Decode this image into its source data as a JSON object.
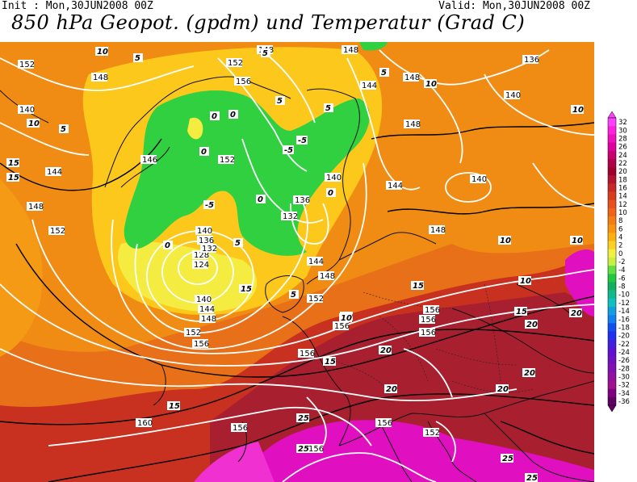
{
  "header": {
    "init": "Init : Mon,30JUN2008 00Z",
    "valid": "Valid: Mon,30JUN2008 00Z",
    "title": "850 hPa Geopot. (gpdm) und Temperatur (Grad C)"
  },
  "legend": {
    "values": [
      "32",
      "30",
      "28",
      "26",
      "24",
      "22",
      "20",
      "18",
      "16",
      "14",
      "12",
      "10",
      "8",
      "6",
      "4",
      "2",
      "0",
      "-2",
      "-4",
      "-6",
      "-8",
      "-10",
      "-12",
      "-14",
      "-16",
      "-18",
      "-20",
      "-22",
      "-24",
      "-26",
      "-28",
      "-30",
      "-32",
      "-34",
      "-36"
    ],
    "colors": [
      "#ff40ff",
      "#ff20e0",
      "#f010c0",
      "#e000a0",
      "#c80070",
      "#b00048",
      "#a00030",
      "#b41430",
      "#c82828",
      "#d83c1c",
      "#e8501c",
      "#f06418",
      "#f47c14",
      "#f89410",
      "#fcb010",
      "#fcd020",
      "#f0f040",
      "#c8f040",
      "#60e040",
      "#20c840",
      "#10b060",
      "#10b890",
      "#10c0c0",
      "#10a0e0",
      "#1080f0",
      "#1050f0",
      "#2030f0",
      "#4020e0",
      "#6010d0",
      "#7010c0",
      "#8010b0",
      "#9010a0",
      "#a01090",
      "#800080",
      "#600060"
    ]
  },
  "map": {
    "colors": {
      "warm_hot": "#e06818",
      "warm_orange": "#f08c14",
      "yellow": "#fcd020",
      "light_yellow": "#f4f040",
      "cold_green": "#30d040",
      "dark_red": "#a82030",
      "magenta": "#e010c0"
    },
    "geopotential_labels": [
      "152",
      "148",
      "140",
      "148",
      "144",
      "152",
      "152",
      "148",
      "148",
      "146",
      "152",
      "156",
      "144",
      "148",
      "140",
      "136",
      "140",
      "144",
      "148",
      "148",
      "136",
      "140",
      "132",
      "136",
      "140",
      "124",
      "128",
      "132",
      "140",
      "144",
      "148",
      "144",
      "148",
      "152",
      "156",
      "152",
      "156",
      "156",
      "156",
      "156",
      "156",
      "160",
      "156",
      "156",
      "152",
      "156",
      "140",
      "144",
      "148",
      "152",
      "128",
      "124",
      "156"
    ],
    "temperature_labels": [
      "10",
      "5",
      "10",
      "5",
      "5",
      "5",
      "0",
      "5",
      "0",
      "5",
      "10",
      "15",
      "15",
      "10",
      "0",
      "0",
      "-5",
      "-5",
      "-5",
      "0",
      "5",
      "0",
      "5",
      "10",
      "10",
      "15",
      "10",
      "10",
      "15",
      "15",
      "20",
      "20",
      "15",
      "20",
      "20",
      "20",
      "25",
      "25",
      "25",
      "20",
      "25",
      "10",
      "15",
      "10",
      "15"
    ]
  }
}
